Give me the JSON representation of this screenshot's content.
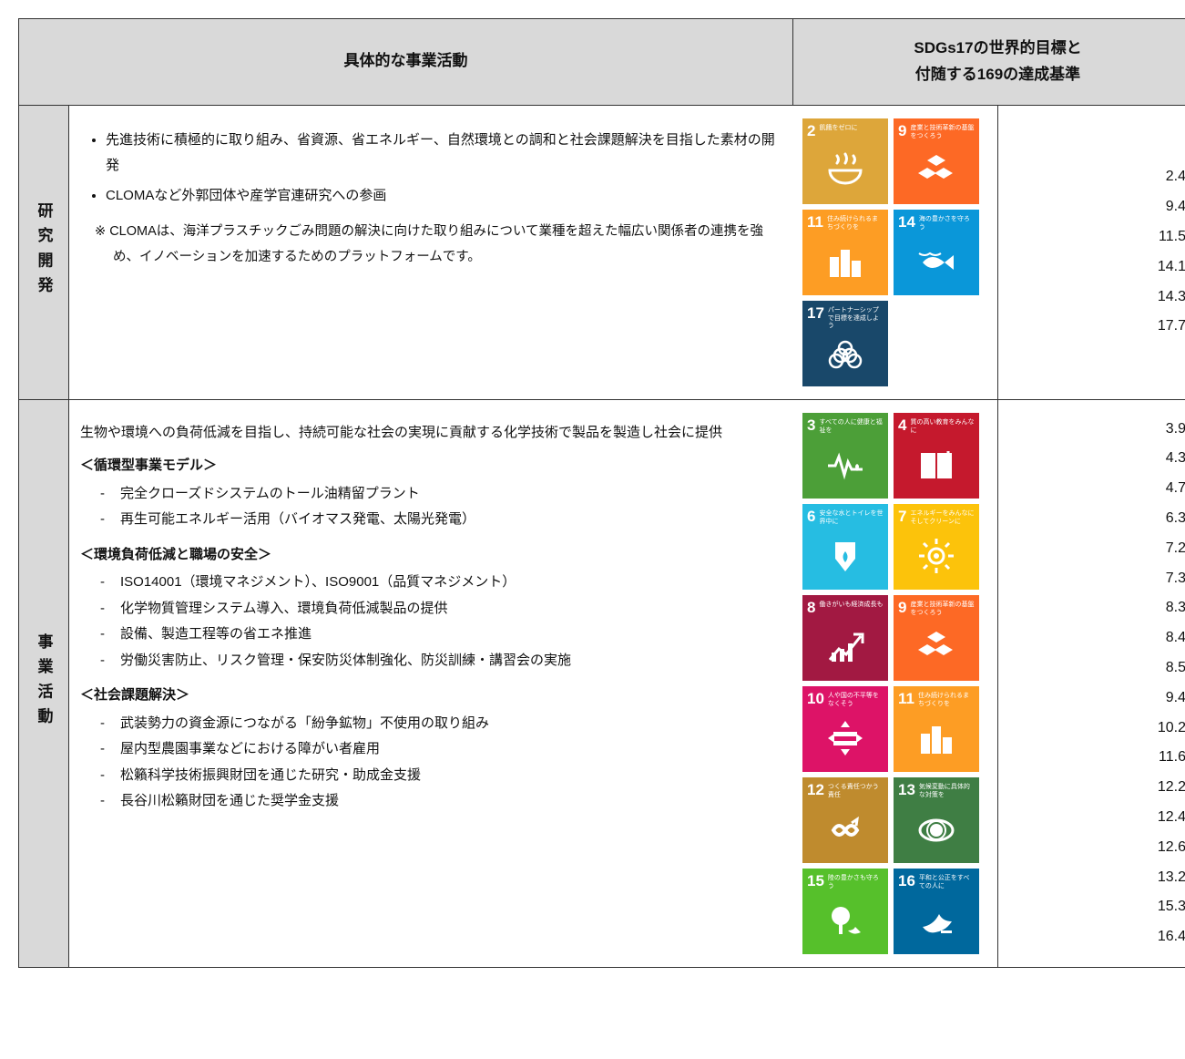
{
  "header": {
    "col_activity": "具体的な事業活動",
    "col_sdgs_line1": "SDGs17の世界的目標と",
    "col_sdgs_line2": "付随する169の達成基準"
  },
  "row1": {
    "label": "研究開発",
    "bullets": [
      "先進技術に積極的に取り組み、省資源、省エネルギー、自然環境との調和と社会課題解決を目指した素材の開発",
      "CLOMAなど外郭団体や産学官連研究への参画"
    ],
    "note_prefix": "※",
    "note": "CLOMAは、海洋プラスチックごみ問題の解決に向けた取り組みについて業種を超えた幅広い関係者の連携を強め、イノベーションを加速するためのプラットフォームです。",
    "tiles": [
      {
        "n": "2",
        "label": "飢餓をゼロに",
        "color": "#dda63a",
        "icon": "bowl"
      },
      {
        "n": "9",
        "label": "産業と技術革新の基盤をつくろう",
        "color": "#fd6925",
        "icon": "cubes"
      },
      {
        "n": "11",
        "label": "住み続けられるまちづくりを",
        "color": "#fd9d24",
        "icon": "city"
      },
      {
        "n": "14",
        "label": "海の豊かさを守ろう",
        "color": "#0a97d9",
        "icon": "fish"
      },
      {
        "n": "17",
        "label": "パートナーシップで目標を達成しよう",
        "color": "#19486a",
        "icon": "rings"
      }
    ],
    "targets": [
      "2.4",
      "9.4",
      "11.5",
      "14.1",
      "14.3",
      "17.7"
    ]
  },
  "row2": {
    "label": "事業活動",
    "intro": "生物や環境への負荷低減を目指し、持続可能な社会の実現に貢献する化学技術で製品を製造し社会に提供",
    "sections": [
      {
        "title": "＜循環型事業モデル＞",
        "items": [
          "完全クローズドシステムのトール油精留プラント",
          "再生可能エネルギー活用（バイオマス発電、太陽光発電）"
        ]
      },
      {
        "title": "＜環境負荷低減と職場の安全＞",
        "items": [
          "ISO14001（環境マネジメント）、ISO9001（品質マネジメント）",
          "化学物質管理システム導入、環境負荷低減製品の提供",
          "設備、製造工程等の省エネ推進",
          "労働災害防止、リスク管理・保安防災体制強化、防災訓練・講習会の実施"
        ]
      },
      {
        "title": "＜社会課題解決＞",
        "items": [
          "武装勢力の資金源につながる「紛争鉱物」不使用の取り組み",
          "屋内型農園事業などにおける障がい者雇用",
          "松籟科学技術振興財団を通じた研究・助成金支援",
          "長谷川松籟財団を通じた奨学金支援"
        ]
      }
    ],
    "tiles": [
      {
        "n": "3",
        "label": "すべての人に健康と福祉を",
        "color": "#4c9f38",
        "icon": "heartbeat"
      },
      {
        "n": "4",
        "label": "質の高い教育をみんなに",
        "color": "#c5192d",
        "icon": "book"
      },
      {
        "n": "6",
        "label": "安全な水とトイレを世界中に",
        "color": "#26bde2",
        "icon": "water"
      },
      {
        "n": "7",
        "label": "エネルギーをみんなにそしてクリーンに",
        "color": "#fcc30b",
        "icon": "sun"
      },
      {
        "n": "8",
        "label": "働きがいも経済成長も",
        "color": "#a21942",
        "icon": "growth"
      },
      {
        "n": "9",
        "label": "産業と技術革新の基盤をつくろう",
        "color": "#fd6925",
        "icon": "cubes"
      },
      {
        "n": "10",
        "label": "人や国の不平等をなくそう",
        "color": "#dd1367",
        "icon": "equal"
      },
      {
        "n": "11",
        "label": "住み続けられるまちづくりを",
        "color": "#fd9d24",
        "icon": "city"
      },
      {
        "n": "12",
        "label": "つくる責任つかう責任",
        "color": "#bf8b2e",
        "icon": "infinity"
      },
      {
        "n": "13",
        "label": "気候変動に具体的な対策を",
        "color": "#3f7e44",
        "icon": "eye"
      },
      {
        "n": "15",
        "label": "陸の豊かさも守ろう",
        "color": "#56c02b",
        "icon": "tree"
      },
      {
        "n": "16",
        "label": "平和と公正をすべての人に",
        "color": "#00689d",
        "icon": "dove"
      }
    ],
    "targets": [
      "3.9",
      "4.3",
      "4.7",
      "6.3",
      "7.2",
      "7.3",
      "8.3",
      "8.4",
      "8.5",
      "9.4",
      "10.2",
      "11.6",
      "12.2",
      "12.4",
      "12.6",
      "13.2",
      "15.3",
      "16.4"
    ]
  }
}
